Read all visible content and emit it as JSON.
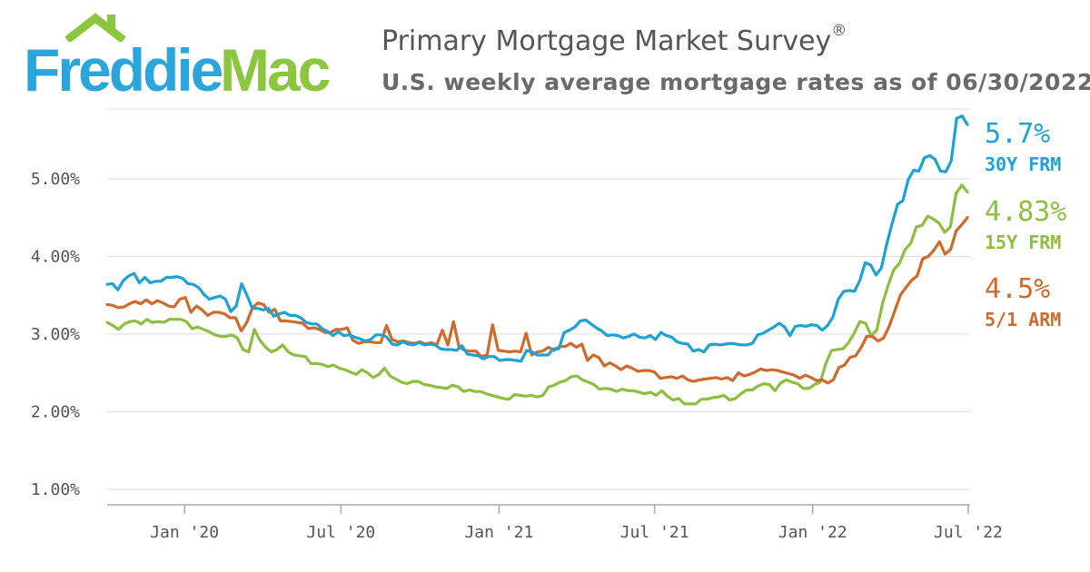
{
  "logo": {
    "part1": "Freddie",
    "part2": "Mac"
  },
  "header": {
    "title": "Primary Mortgage Market Survey",
    "title_mark": "®",
    "subtitle": "U.S. weekly average mortgage rates as of 06/30/2022"
  },
  "colors": {
    "brand_blue": "#2aa6dc",
    "brand_green": "#8cc63f",
    "series_30y": "#1da2d8",
    "series_15y": "#8dbf3f",
    "series_arm": "#cf6a2a",
    "grid": "#dddddd",
    "axis": "#aaaaaa"
  },
  "chart_data": {
    "type": "line",
    "title": "Primary Mortgage Market Survey",
    "subtitle": "U.S. weekly average mortgage rates as of 06/30/2022",
    "x_start": "2019-10-03",
    "x_end": "2022-06-30",
    "ylim": [
      0.8,
      5.9
    ],
    "y_ticks": [
      1,
      2,
      3,
      4,
      5
    ],
    "y_tick_labels": [
      "1.00%",
      "2.00%",
      "3.00%",
      "4.00%",
      "5.00%"
    ],
    "x_ticks": [
      "2020-01-01",
      "2020-07-01",
      "2021-01-01",
      "2021-07-01",
      "2022-01-01",
      "2022-07-01"
    ],
    "x_tick_labels": [
      "Jan '20",
      "Jul '20",
      "Jan '21",
      "Jul '21",
      "Jan '22",
      "Jul '22"
    ],
    "grid": true,
    "legend": "right end labels",
    "series": [
      {
        "name": "30Y FRM",
        "end_label": "5.7%",
        "values": [
          3.64,
          3.65,
          3.57,
          3.69,
          3.75,
          3.78,
          3.66,
          3.73,
          3.66,
          3.68,
          3.68,
          3.73,
          3.73,
          3.74,
          3.72,
          3.65,
          3.64,
          3.6,
          3.51,
          3.45,
          3.47,
          3.49,
          3.45,
          3.29,
          3.36,
          3.65,
          3.5,
          3.33,
          3.33,
          3.31,
          3.33,
          3.23,
          3.26,
          3.28,
          3.24,
          3.24,
          3.21,
          3.15,
          3.13,
          3.13,
          3.07,
          3.03,
          2.98,
          3.03,
          2.98,
          2.99,
          2.96,
          2.94,
          2.91,
          2.93,
          2.99,
          2.99,
          2.96,
          2.87,
          2.86,
          2.9,
          2.87,
          2.86,
          2.89,
          2.86,
          2.87,
          2.86,
          2.81,
          2.8,
          2.8,
          2.79,
          2.85,
          2.74,
          2.73,
          2.72,
          2.68,
          2.71,
          2.71,
          2.66,
          2.67,
          2.67,
          2.66,
          2.65,
          2.79,
          2.77,
          2.73,
          2.73,
          2.73,
          2.81,
          2.81,
          3.02,
          3.05,
          3.09,
          3.17,
          3.18,
          3.13,
          3.08,
          3.04,
          2.98,
          2.99,
          2.98,
          2.95,
          2.97,
          3.0,
          2.96,
          2.95,
          2.98,
          2.93,
          3.02,
          2.98,
          2.96,
          2.9,
          2.88,
          2.87,
          2.78,
          2.8,
          2.77,
          2.86,
          2.87,
          2.86,
          2.87,
          2.88,
          2.87,
          2.86,
          2.86,
          2.88,
          2.99,
          3.01,
          3.05,
          3.09,
          3.14,
          3.09,
          2.98,
          3.1,
          3.11,
          3.1,
          3.12,
          3.11,
          3.05,
          3.11,
          3.22,
          3.45,
          3.55,
          3.56,
          3.55,
          3.69,
          3.92,
          3.89,
          3.76,
          3.85,
          4.16,
          4.42,
          4.67,
          4.72,
          4.99,
          5.11,
          5.1,
          5.27,
          5.3,
          5.25,
          5.1,
          5.09,
          5.23,
          5.78,
          5.81,
          5.7
        ]
      },
      {
        "name": "15Y FRM",
        "end_label": "4.83%",
        "values": [
          3.15,
          3.11,
          3.06,
          3.13,
          3.16,
          3.17,
          3.13,
          3.19,
          3.15,
          3.16,
          3.15,
          3.19,
          3.19,
          3.19,
          3.16,
          3.07,
          3.09,
          3.06,
          3.03,
          2.99,
          2.97,
          2.97,
          2.99,
          2.95,
          2.8,
          2.77,
          3.06,
          2.92,
          2.83,
          2.77,
          2.8,
          2.86,
          2.77,
          2.73,
          2.72,
          2.71,
          2.62,
          2.62,
          2.61,
          2.58,
          2.6,
          2.56,
          2.54,
          2.51,
          2.48,
          2.54,
          2.5,
          2.44,
          2.48,
          2.56,
          2.46,
          2.42,
          2.38,
          2.36,
          2.39,
          2.39,
          2.35,
          2.34,
          2.32,
          2.31,
          2.3,
          2.34,
          2.32,
          2.26,
          2.28,
          2.26,
          2.26,
          2.23,
          2.21,
          2.19,
          2.17,
          2.16,
          2.22,
          2.21,
          2.2,
          2.21,
          2.19,
          2.21,
          2.32,
          2.34,
          2.38,
          2.4,
          2.45,
          2.46,
          2.41,
          2.38,
          2.35,
          2.29,
          2.3,
          2.29,
          2.26,
          2.29,
          2.27,
          2.27,
          2.25,
          2.23,
          2.25,
          2.21,
          2.27,
          2.2,
          2.15,
          2.17,
          2.1,
          2.1,
          2.1,
          2.16,
          2.16,
          2.18,
          2.19,
          2.21,
          2.15,
          2.17,
          2.23,
          2.28,
          2.28,
          2.33,
          2.36,
          2.35,
          2.27,
          2.37,
          2.41,
          2.38,
          2.36,
          2.3,
          2.3,
          2.35,
          2.38,
          2.62,
          2.79,
          2.8,
          2.81,
          2.89,
          3.01,
          3.16,
          3.14,
          2.98,
          3.05,
          3.39,
          3.63,
          3.83,
          3.91,
          4.09,
          4.17,
          4.38,
          4.4,
          4.52,
          4.48,
          4.43,
          4.31,
          4.38,
          4.81,
          4.92,
          4.83
        ]
      },
      {
        "name": "5/1 ARM",
        "end_label": "4.5%",
        "values": [
          3.38,
          3.37,
          3.34,
          3.35,
          3.39,
          3.42,
          3.39,
          3.44,
          3.39,
          3.43,
          3.4,
          3.36,
          3.35,
          3.45,
          3.47,
          3.28,
          3.36,
          3.31,
          3.24,
          3.28,
          3.28,
          3.26,
          3.21,
          3.21,
          3.04,
          3.15,
          3.34,
          3.4,
          3.38,
          3.28,
          3.32,
          3.17,
          3.17,
          3.16,
          3.15,
          3.14,
          3.07,
          3.08,
          3.06,
          3.02,
          3.02,
          3.06,
          3.06,
          3.08,
          2.92,
          2.88,
          2.9,
          2.9,
          2.89,
          2.89,
          3.11,
          2.93,
          2.9,
          2.91,
          2.89,
          2.88,
          2.9,
          2.87,
          2.89,
          2.86,
          3.05,
          2.86,
          3.16,
          2.83,
          2.79,
          2.78,
          2.78,
          2.71,
          2.73,
          3.12,
          2.79,
          2.78,
          2.77,
          2.78,
          2.77,
          3.01,
          2.73,
          2.77,
          2.78,
          2.83,
          2.79,
          2.84,
          2.84,
          2.88,
          2.83,
          2.87,
          2.66,
          2.73,
          2.7,
          2.59,
          2.63,
          2.59,
          2.54,
          2.59,
          2.56,
          2.52,
          2.53,
          2.53,
          2.51,
          2.43,
          2.44,
          2.45,
          2.43,
          2.46,
          2.41,
          2.39,
          2.41,
          2.42,
          2.43,
          2.44,
          2.42,
          2.44,
          2.4,
          2.5,
          2.46,
          2.48,
          2.51,
          2.55,
          2.53,
          2.54,
          2.53,
          2.51,
          2.49,
          2.47,
          2.43,
          2.47,
          2.44,
          2.4,
          2.41,
          2.37,
          2.41,
          2.57,
          2.6,
          2.7,
          2.72,
          2.83,
          2.97,
          2.97,
          2.91,
          2.95,
          3.1,
          3.3,
          3.5,
          3.6,
          3.69,
          3.75,
          3.97,
          4.0,
          4.08,
          4.19,
          4.03,
          4.09,
          4.33,
          4.41,
          4.5
        ]
      }
    ]
  }
}
